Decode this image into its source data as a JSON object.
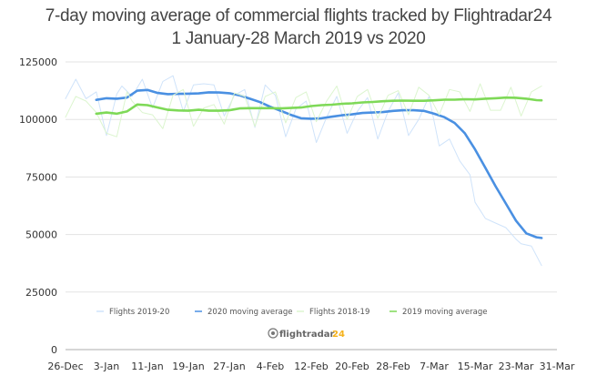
{
  "chart_data": {
    "type": "line",
    "title": "7-day moving average of commercial flights tracked by Flightradar24",
    "subtitle": "1 January-28 March 2019 vs 2020",
    "xlabel": "",
    "ylabel": "",
    "ylim": [
      0,
      125000
    ],
    "yticks": [
      "0",
      "25000",
      "50000",
      "75000",
      "100000",
      "125000"
    ],
    "ytick_values": [
      0,
      25000,
      50000,
      75000,
      100000,
      125000
    ],
    "xticks": [
      "26-Dec",
      "3-Jan",
      "11-Jan",
      "19-Jan",
      "27-Jan",
      "4-Feb",
      "12-Feb",
      "20-Feb",
      "28-Feb",
      "7-Mar",
      "15-Mar",
      "23-Mar",
      "31-Mar"
    ],
    "x_unit": "days since 26-Dec",
    "xlim": [
      0,
      96
    ],
    "grid": true,
    "legend_position": "bottom",
    "watermark": {
      "text": "flightradar",
      "accent": "24"
    },
    "series": [
      {
        "name": "Flights 2019-20",
        "color": "#cfe3fa",
        "x": [
          0,
          2,
          4,
          6,
          8,
          10,
          11,
          13,
          15,
          17,
          19,
          21,
          23,
          25,
          27,
          29,
          31,
          33,
          35,
          37,
          39,
          41,
          43,
          45,
          47,
          49,
          51,
          53,
          55,
          57,
          59,
          61,
          63,
          65,
          67,
          69,
          71,
          73,
          75,
          77,
          79,
          80,
          82,
          84,
          86,
          88,
          89,
          91,
          93
        ],
        "values": [
          109000,
          117500,
          109000,
          112000,
          93000,
          111000,
          114500,
          110000,
          117500,
          105000,
          116500,
          119000,
          103500,
          115000,
          115500,
          115000,
          101500,
          110500,
          113000,
          96500,
          115000,
          110500,
          92500,
          104500,
          108000,
          90000,
          101000,
          110000,
          94000,
          103500,
          109500,
          91500,
          103500,
          111500,
          93000,
          100000,
          110000,
          88500,
          91500,
          82000,
          76000,
          64000,
          57000,
          55000,
          53000,
          48000,
          46000,
          45000,
          36500
        ]
      },
      {
        "name": "2020 moving average",
        "color": "#4a90e2",
        "x": [
          6,
          8,
          10,
          12,
          14,
          16,
          18,
          20,
          22,
          24,
          26,
          28,
          30,
          32,
          34,
          36,
          38,
          40,
          42,
          44,
          46,
          48,
          50,
          52,
          54,
          56,
          58,
          60,
          62,
          64,
          66,
          68,
          70,
          72,
          74,
          76,
          78,
          80,
          82,
          84,
          86,
          88,
          90,
          92,
          93
        ],
        "values": [
          108500,
          109200,
          109000,
          109500,
          112500,
          112800,
          111500,
          111000,
          111100,
          111200,
          111300,
          111800,
          111700,
          111400,
          110500,
          109000,
          107500,
          105500,
          103800,
          102000,
          100500,
          100300,
          100500,
          101200,
          101800,
          102200,
          102800,
          103000,
          103200,
          103700,
          104000,
          104000,
          103700,
          102500,
          101000,
          98500,
          94000,
          87000,
          79000,
          71000,
          63500,
          56000,
          50500,
          48800,
          48500
        ]
      },
      {
        "name": "Flights 2018-19",
        "color": "#dcf5cf",
        "x": [
          0,
          2,
          4,
          6,
          8,
          10,
          12,
          13,
          15,
          17,
          19,
          21,
          23,
          25,
          27,
          29,
          31,
          33,
          35,
          37,
          39,
          41,
          43,
          45,
          47,
          49,
          51,
          53,
          55,
          57,
          59,
          61,
          63,
          65,
          67,
          69,
          71,
          73,
          75,
          77,
          79,
          81,
          83,
          85,
          87,
          89,
          91,
          93
        ],
        "values": [
          101000,
          110000,
          108000,
          103000,
          94000,
          92500,
          112000,
          108000,
          103000,
          102000,
          96000,
          110500,
          113000,
          97000,
          105000,
          106500,
          98000,
          111500,
          110000,
          97000,
          110000,
          112000,
          98500,
          109500,
          112000,
          99000,
          108000,
          114500,
          100000,
          110000,
          113000,
          100500,
          110500,
          112500,
          102000,
          114000,
          110500,
          102000,
          113000,
          112000,
          103500,
          115500,
          104000,
          104000,
          114000,
          101500,
          112000,
          114500
        ]
      },
      {
        "name": "2019 moving average",
        "color": "#7ed957",
        "x": [
          6,
          8,
          10,
          12,
          14,
          16,
          18,
          20,
          22,
          24,
          26,
          28,
          30,
          32,
          34,
          36,
          38,
          40,
          42,
          44,
          46,
          48,
          50,
          52,
          54,
          56,
          58,
          60,
          62,
          64,
          66,
          68,
          70,
          72,
          74,
          76,
          78,
          80,
          82,
          84,
          86,
          88,
          90,
          92,
          93
        ],
        "values": [
          102500,
          103000,
          102500,
          103500,
          106500,
          106200,
          105200,
          104200,
          103900,
          103800,
          104200,
          103800,
          103800,
          104000,
          104800,
          104900,
          104900,
          104900,
          104800,
          105000,
          105200,
          105800,
          106200,
          106400,
          106800,
          107000,
          107400,
          107600,
          107900,
          108100,
          108200,
          108100,
          108100,
          108300,
          108600,
          108600,
          108800,
          108700,
          109000,
          109200,
          109500,
          109400,
          109000,
          108400,
          108300
        ]
      }
    ]
  }
}
